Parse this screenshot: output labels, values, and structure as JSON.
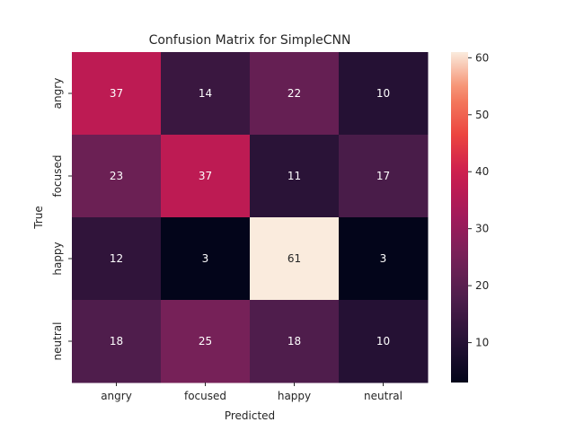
{
  "chart_data": {
    "type": "heatmap",
    "title": "Confusion Matrix for SimpleCNN",
    "xlabel": "Predicted",
    "ylabel": "True",
    "x_categories": [
      "angry",
      "focused",
      "happy",
      "neutral"
    ],
    "y_categories": [
      "angry",
      "focused",
      "happy",
      "neutral"
    ],
    "values": [
      [
        37,
        14,
        22,
        10
      ],
      [
        23,
        37,
        11,
        17
      ],
      [
        12,
        3,
        61,
        3
      ],
      [
        18,
        25,
        18,
        10
      ]
    ],
    "colormap": "rocket",
    "vmin": 3,
    "vmax": 61,
    "colorbar_ticks": [
      "10",
      "20",
      "30",
      "40",
      "50",
      "60"
    ],
    "grid": false
  }
}
